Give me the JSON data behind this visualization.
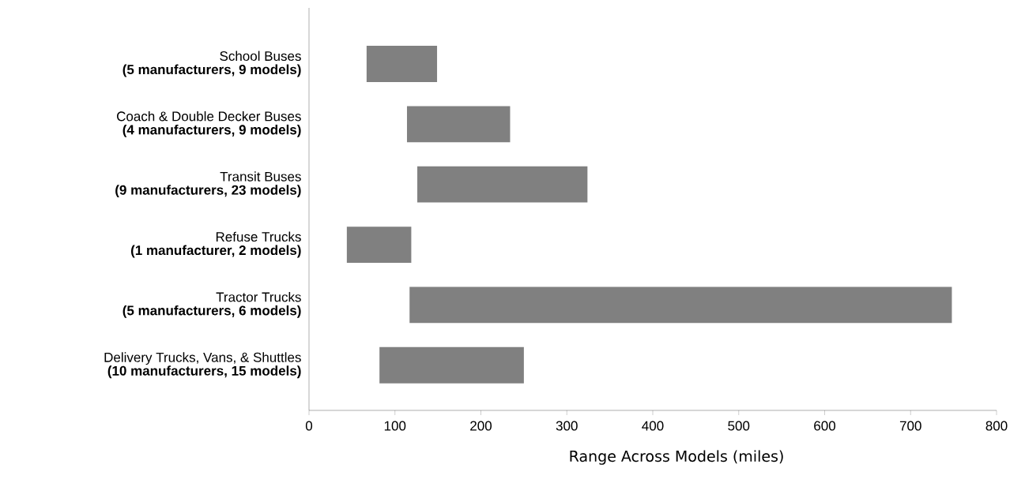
{
  "chart_data": {
    "type": "bar",
    "orientation": "horizontal",
    "xlabel": "Range Across Models (miles)",
    "categories": [
      "School Buses\n**(5 manufacturers, 9 models)**",
      "Coach & Double Decker Buses\n**(4 manufacturers, 9 models)**",
      "Transit Buses\n**(9 manufacturers, 23 models)**",
      "Refuse Trucks\n**(1 manufacturer, 2 models)**",
      "Tractor Trucks\n**(5 manufacturers, 6 models)**",
      "Delivery Trucks, Vans, & Shuttles\n**(10 manufacturers, 15 models)**"
    ],
    "base": [
      67,
      114,
      126,
      44,
      117,
      82
    ],
    "values": [
      82,
      120,
      198,
      75,
      631,
      168
    ],
    "color": "#808080",
    "xlim": [
      0,
      800
    ],
    "xticks": [
      0,
      100,
      200,
      300,
      400,
      500,
      600,
      700,
      800
    ],
    "grid": false
  }
}
